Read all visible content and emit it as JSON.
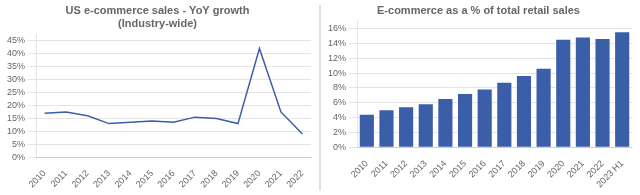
{
  "chart_data": [
    {
      "type": "line",
      "title": "US e-commerce sales - YoY growth\n(Industry-wide)",
      "x": [
        2010,
        2011,
        2012,
        2013,
        2014,
        2015,
        2016,
        2017,
        2018,
        2019,
        2020,
        2021,
        2022
      ],
      "values": [
        0.17,
        0.175,
        0.16,
        0.13,
        0.135,
        0.14,
        0.135,
        0.155,
        0.15,
        0.13,
        0.42,
        0.175,
        0.09
      ],
      "color": "#3A5EA8",
      "xlim": [
        2009.6,
        2022.4
      ],
      "xticks": [
        2010,
        2011,
        2012,
        2013,
        2014,
        2015,
        2016,
        2017,
        2018,
        2019,
        2020,
        2021,
        2022
      ],
      "ylim": [
        0,
        0.475
      ],
      "yticks": [
        {
          "value": 0,
          "label": "0%"
        },
        {
          "value": 0.05,
          "label": "5%"
        },
        {
          "value": 0.1,
          "label": "10%"
        },
        {
          "value": 0.15,
          "label": "15%"
        },
        {
          "value": 0.2,
          "label": "20%"
        },
        {
          "value": 0.25,
          "label": "25%"
        },
        {
          "value": 0.3,
          "label": "30%"
        },
        {
          "value": 0.35,
          "label": "35%"
        },
        {
          "value": 0.4,
          "label": "40%"
        },
        {
          "value": 0.45,
          "label": "45%"
        }
      ],
      "grid": "y"
    },
    {
      "type": "bar",
      "title": "E-commerce as a % of total retail sales",
      "categories": [
        "2010",
        "2011",
        "2012",
        "2013",
        "2014",
        "2015",
        "2016",
        "2017",
        "2018",
        "2019",
        "2020",
        "2021",
        "2022",
        "2023 H1"
      ],
      "values": [
        0.044,
        0.05,
        0.054,
        0.058,
        0.065,
        0.072,
        0.078,
        0.087,
        0.096,
        0.106,
        0.145,
        0.148,
        0.146,
        0.155
      ],
      "color": "#3A5EA8",
      "ylim": [
        0,
        0.17
      ],
      "yticks": [
        {
          "value": 0,
          "label": "0%"
        },
        {
          "value": 0.02,
          "label": "2%"
        },
        {
          "value": 0.04,
          "label": "4%"
        },
        {
          "value": 0.06,
          "label": "6%"
        },
        {
          "value": 0.08,
          "label": "8%"
        },
        {
          "value": 0.1,
          "label": "10%"
        },
        {
          "value": 0.12,
          "label": "12%"
        },
        {
          "value": 0.14,
          "label": "14%"
        },
        {
          "value": 0.16,
          "label": "16%"
        }
      ],
      "grid": "y"
    }
  ]
}
